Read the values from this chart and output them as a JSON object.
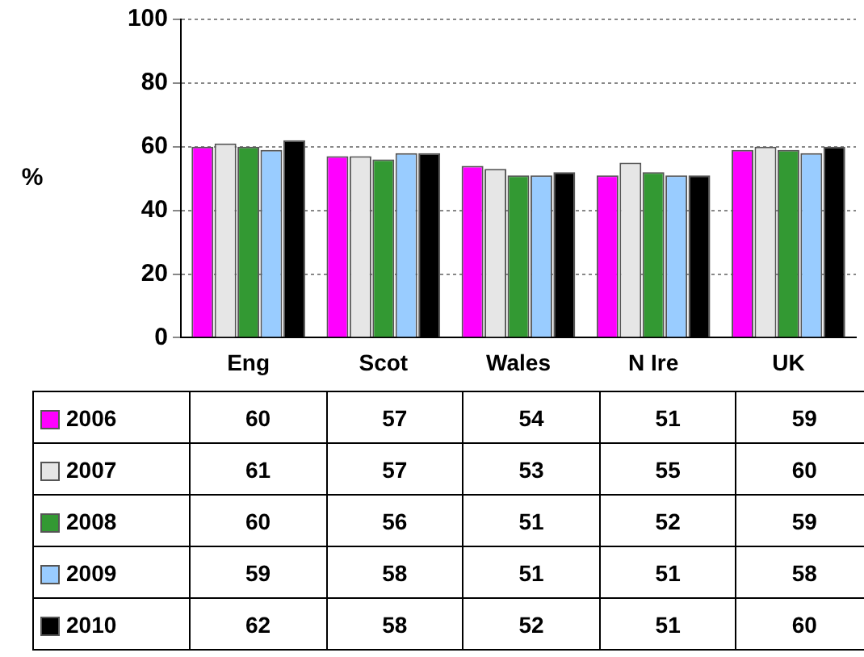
{
  "chart_data": {
    "type": "bar",
    "ylabel": "%",
    "categories": [
      "Eng",
      "Scot",
      "Wales",
      "N Ire",
      "UK"
    ],
    "series": [
      {
        "name": "2006",
        "color": "#ff00ff",
        "values": [
          60,
          57,
          54,
          51,
          59
        ]
      },
      {
        "name": "2007",
        "color": "#e6e6e6",
        "values": [
          61,
          57,
          53,
          55,
          60
        ]
      },
      {
        "name": "2008",
        "color": "#339933",
        "values": [
          60,
          56,
          51,
          52,
          59
        ]
      },
      {
        "name": "2009",
        "color": "#99ccff",
        "values": [
          59,
          58,
          51,
          51,
          58
        ]
      },
      {
        "name": "2010",
        "color": "#000000",
        "values": [
          62,
          58,
          52,
          51,
          60
        ]
      }
    ],
    "ylim": [
      0,
      100
    ],
    "yticks": [
      0,
      20,
      40,
      60,
      80,
      100
    ],
    "grid": "y",
    "legend": "bottom",
    "data_labels": true
  }
}
